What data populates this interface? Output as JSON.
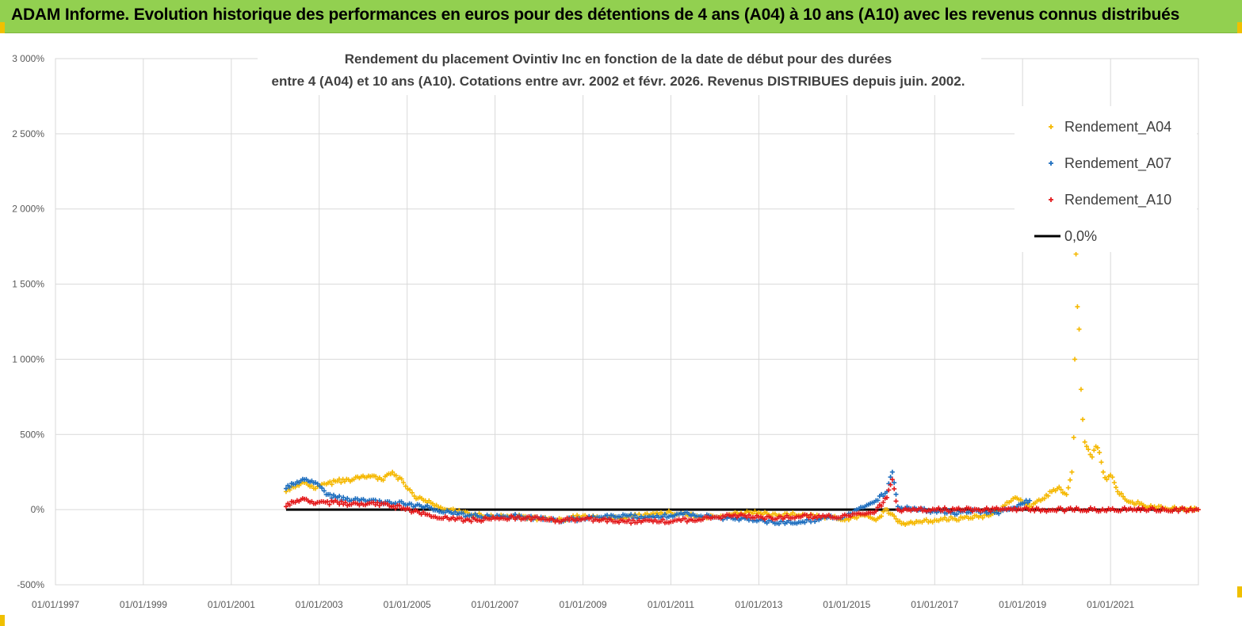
{
  "banner": {
    "title": "ADAM Informe. Evolution historique des performances en euros pour des détentions de 4 ans (A04) à 10 ans (A10) avec les revenus connus distribués"
  },
  "colors": {
    "banner_bg": "#92d050",
    "A04": "#f5b800",
    "A07": "#1f6fbf",
    "A10": "#e31a1c",
    "zero_line": "#000000",
    "grid": "#d9d9d9"
  },
  "chart_data": {
    "type": "scatter",
    "title_line1": "Rendement du placement Ovintiv Inc en fonction de la date de début pour des durées",
    "title_line2": "entre 4 (A04) et 10 ans (A10).  Cotations entre avr. 2002 et févr. 2026. Revenus DISTRIBUES depuis juin. 2002.",
    "x_type": "date",
    "xlim": [
      "1997-01-01",
      "2023-01-01"
    ],
    "x_ticks": [
      "01/01/1997",
      "01/01/1999",
      "01/01/2001",
      "01/01/2003",
      "01/01/2005",
      "01/01/2007",
      "01/01/2009",
      "01/01/2011",
      "01/01/2013",
      "01/01/2015",
      "01/01/2017",
      "01/01/2019",
      "01/01/2021"
    ],
    "ylim": [
      -500,
      3000
    ],
    "y_ticks": [
      -500,
      0,
      500,
      1000,
      1500,
      2000,
      2500,
      3000
    ],
    "y_tick_labels": [
      "-500%",
      "0%",
      "500%",
      "1 000%",
      "1 500%",
      "2 000%",
      "2 500%",
      "3 000%"
    ],
    "grid": true,
    "legend_position": "top-right",
    "legend": [
      {
        "label": "Rendement_A04",
        "marker": "+",
        "color": "#f5b800"
      },
      {
        "label": "Rendement_A07",
        "marker": "+",
        "color": "#1f6fbf"
      },
      {
        "label": "Rendement_A10",
        "marker": "+",
        "color": "#e31a1c"
      },
      {
        "label": "0,0%",
        "marker": "line",
        "color": "#000000"
      }
    ],
    "series": [
      {
        "name": "Rendement_A04",
        "color": "#f5b800",
        "x": [
          "2002-04-01",
          "2002-06-01",
          "2002-09-01",
          "2002-12-01",
          "2003-03-01",
          "2003-06-01",
          "2003-09-01",
          "2003-12-01",
          "2004-03-01",
          "2004-06-01",
          "2004-09-01",
          "2004-12-01",
          "2005-03-01",
          "2005-06-01",
          "2005-09-01",
          "2006-01-01",
          "2006-06-01",
          "2007-01-01",
          "2007-06-01",
          "2008-01-01",
          "2008-06-01",
          "2009-01-01",
          "2009-06-01",
          "2010-01-01",
          "2010-06-01",
          "2011-01-01",
          "2011-06-01",
          "2012-01-01",
          "2012-06-01",
          "2013-01-01",
          "2013-06-01",
          "2014-01-01",
          "2014-06-01",
          "2015-01-01",
          "2015-06-01",
          "2015-09-01",
          "2015-12-01",
          "2016-03-01",
          "2016-06-01",
          "2016-09-01",
          "2017-01-01",
          "2017-06-01",
          "2018-01-01",
          "2018-06-01",
          "2018-11-01",
          "2019-01-01",
          "2019-03-01",
          "2019-06-01",
          "2019-09-01",
          "2019-11-01",
          "2020-01-01",
          "2020-02-15",
          "2020-03-01",
          "2020-03-10",
          "2020-03-20",
          "2020-04-01",
          "2020-04-15",
          "2020-05-01",
          "2020-05-15",
          "2020-06-01",
          "2020-07-01",
          "2020-08-01",
          "2020-09-01",
          "2020-10-01",
          "2020-11-01",
          "2020-12-01",
          "2021-01-01",
          "2021-02-01",
          "2021-03-01",
          "2021-05-01",
          "2021-07-01",
          "2021-10-01",
          "2022-01-01",
          "2022-04-01",
          "2022-07-01",
          "2022-10-01",
          "2022-12-31"
        ],
        "y": [
          120,
          150,
          180,
          140,
          170,
          190,
          200,
          210,
          220,
          200,
          250,
          180,
          90,
          60,
          30,
          0,
          -30,
          -50,
          -40,
          -60,
          -70,
          -40,
          -60,
          -50,
          -30,
          -20,
          -40,
          -50,
          -30,
          -20,
          -40,
          -30,
          -50,
          -60,
          -40,
          -70,
          0,
          -80,
          -90,
          -80,
          -70,
          -60,
          -50,
          -20,
          80,
          50,
          20,
          60,
          120,
          150,
          100,
          250,
          480,
          1000,
          1700,
          1350,
          1200,
          800,
          600,
          450,
          400,
          350,
          420,
          380,
          250,
          200,
          230,
          180,
          120,
          70,
          50,
          30,
          20,
          10,
          5,
          0,
          0
        ]
      },
      {
        "name": "Rendement_A07",
        "color": "#1f6fbf",
        "x": [
          "2002-04-01",
          "2002-06-01",
          "2002-09-01",
          "2002-12-01",
          "2003-03-01",
          "2003-06-01",
          "2003-12-01",
          "2004-06-01",
          "2004-12-01",
          "2005-06-01",
          "2006-01-01",
          "2006-06-01",
          "2007-01-01",
          "2007-06-01",
          "2008-01-01",
          "2008-06-01",
          "2009-01-01",
          "2009-06-01",
          "2010-01-01",
          "2010-06-01",
          "2011-01-01",
          "2011-06-01",
          "2012-01-01",
          "2012-06-01",
          "2013-01-01",
          "2013-06-01",
          "2014-01-01",
          "2014-06-01",
          "2015-01-01",
          "2015-06-01",
          "2015-09-01",
          "2015-12-01",
          "2016-01-15",
          "2016-03-01",
          "2016-06-01",
          "2016-09-01",
          "2017-01-01",
          "2017-06-01",
          "2018-01-01",
          "2018-06-01",
          "2018-11-01",
          "2019-01-01",
          "2019-03-01"
        ],
        "y": [
          140,
          170,
          200,
          180,
          100,
          80,
          60,
          50,
          40,
          20,
          -20,
          -40,
          -50,
          -40,
          -60,
          -70,
          -60,
          -50,
          -40,
          -50,
          -40,
          -30,
          -50,
          -60,
          -70,
          -90,
          -80,
          -60,
          -40,
          20,
          60,
          120,
          250,
          20,
          10,
          0,
          -10,
          -20,
          -10,
          -20,
          10,
          40,
          60
        ]
      },
      {
        "name": "Rendement_A10",
        "color": "#e31a1c",
        "x": [
          "2002-04-01",
          "2002-06-01",
          "2002-09-01",
          "2002-12-01",
          "2003-06-01",
          "2003-12-01",
          "2004-06-01",
          "2004-12-01",
          "2005-06-01",
          "2006-01-01",
          "2006-06-01",
          "2007-01-01",
          "2007-06-01",
          "2008-01-01",
          "2008-06-01",
          "2009-01-01",
          "2009-06-01",
          "2010-01-01",
          "2010-06-01",
          "2011-01-01",
          "2011-06-01",
          "2012-01-01",
          "2012-06-01",
          "2013-01-01",
          "2013-06-01",
          "2014-01-01",
          "2014-06-01",
          "2015-01-01",
          "2015-06-01",
          "2015-09-01",
          "2015-12-01",
          "2016-01-15",
          "2016-03-01",
          "2016-06-01",
          "2017-01-01",
          "2018-01-01",
          "2019-01-01",
          "2020-01-01",
          "2021-01-01",
          "2022-01-01",
          "2022-12-31"
        ],
        "y": [
          20,
          50,
          70,
          40,
          50,
          30,
          40,
          10,
          -30,
          -60,
          -70,
          -60,
          -50,
          -60,
          -70,
          -60,
          -70,
          -80,
          -70,
          -80,
          -70,
          -50,
          -40,
          -50,
          -60,
          -40,
          -50,
          -40,
          -30,
          -10,
          80,
          200,
          0,
          0,
          0,
          0,
          0,
          0,
          0,
          0,
          0
        ]
      }
    ],
    "zero_line": {
      "x_start": "2002-04-01",
      "x_end": "2022-12-31",
      "y": 0
    }
  }
}
